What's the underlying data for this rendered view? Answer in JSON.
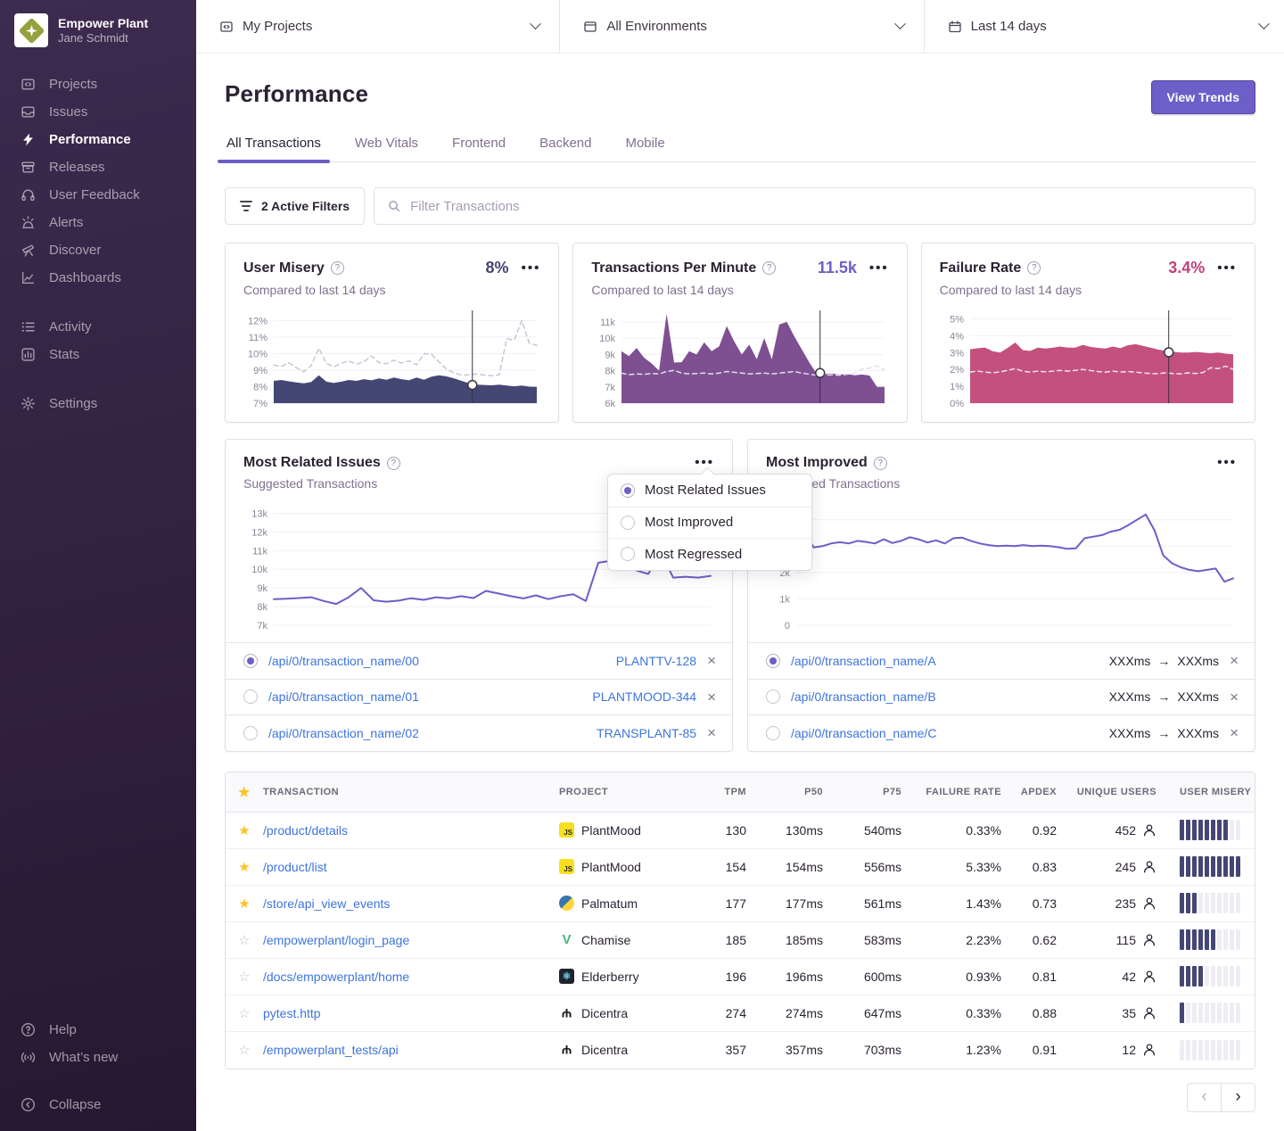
{
  "org": {
    "name": "Empower Plant",
    "user": "Jane Schmidt"
  },
  "colors": {
    "accent_purple": "#6C5FC7",
    "link_blue": "#3D74DB",
    "misery_navy": "#444674",
    "tpm_purple": "#7E4F91",
    "failure_pink": "#C4517D",
    "star_yellow": "#FFC227",
    "sidebar_top": "#3D2B50",
    "sidebar_bottom": "#271831"
  },
  "sidebar": {
    "primary": [
      {
        "label": "Projects",
        "icon": "projects-icon",
        "active": false
      },
      {
        "label": "Issues",
        "icon": "issues-icon",
        "active": false
      },
      {
        "label": "Performance",
        "icon": "performance-icon",
        "active": true
      },
      {
        "label": "Releases",
        "icon": "releases-icon",
        "active": false
      },
      {
        "label": "User Feedback",
        "icon": "user-feedback-icon",
        "active": false
      },
      {
        "label": "Alerts",
        "icon": "alerts-icon",
        "active": false
      },
      {
        "label": "Discover",
        "icon": "discover-icon",
        "active": false
      },
      {
        "label": "Dashboards",
        "icon": "dashboards-icon",
        "active": false
      }
    ],
    "secondary": [
      {
        "label": "Activity",
        "icon": "activity-icon",
        "active": false
      },
      {
        "label": "Stats",
        "icon": "stats-icon",
        "active": false
      }
    ],
    "tertiary": [
      {
        "label": "Settings",
        "icon": "settings-icon",
        "active": false
      }
    ],
    "footer": [
      {
        "label": "Help",
        "icon": "help-icon",
        "active": false
      },
      {
        "label": "What’s new",
        "icon": "broadcast-icon",
        "active": false
      }
    ],
    "collapse": {
      "label": "Collapse",
      "icon": "collapse-icon"
    }
  },
  "topbar": {
    "selectors": [
      {
        "label": "My Projects",
        "icon": "projects-icon"
      },
      {
        "label": "All Environments",
        "icon": "window-icon"
      },
      {
        "label": "Last 14 days",
        "icon": "calendar-icon"
      }
    ]
  },
  "header": {
    "title": "Performance",
    "view_trends_label": "View Trends",
    "tabs": [
      {
        "label": "All Transactions",
        "active": true
      },
      {
        "label": "Web Vitals",
        "active": false
      },
      {
        "label": "Frontend",
        "active": false
      },
      {
        "label": "Backend",
        "active": false
      },
      {
        "label": "Mobile",
        "active": false
      }
    ]
  },
  "filter_bar": {
    "active_filters_label": "2 Active Filters",
    "search_placeholder": "Filter Transactions"
  },
  "metric_cards": [
    {
      "id": "user_misery",
      "title": "User Misery",
      "value": "8%",
      "value_color": "#444674",
      "subtitle": "Compared to last 14 days"
    },
    {
      "id": "tpm",
      "title": "Transactions Per Minute",
      "value": "11.5k",
      "value_color": "#6C5FC7",
      "subtitle": "Compared to last 14 days"
    },
    {
      "id": "failure_rate",
      "title": "Failure Rate",
      "value": "3.4%",
      "value_color": "#C1417B",
      "subtitle": "Compared to last 14 days"
    }
  ],
  "trend_cards": [
    {
      "id": "most_related",
      "title": "Most Related Issues",
      "subtitle": "Suggested Transactions"
    },
    {
      "id": "most_improved",
      "title": "Most Improved",
      "subtitle": "Suggested Transactions"
    }
  ],
  "dropdown": {
    "options": [
      {
        "label": "Most Related Issues",
        "selected": true
      },
      {
        "label": "Most Improved",
        "selected": false
      },
      {
        "label": "Most Regressed",
        "selected": false
      }
    ]
  },
  "related_list": [
    {
      "selected": true,
      "name": "/api/0/transaction_name/00",
      "issue": "PLANTTV-128"
    },
    {
      "selected": false,
      "name": "/api/0/transaction_name/01",
      "issue": "PLANTMOOD-344"
    },
    {
      "selected": false,
      "name": "/api/0/transaction_name/02",
      "issue": "TRANSPLANT-85"
    }
  ],
  "improved_list": [
    {
      "selected": true,
      "name": "/api/0/transaction_name/A",
      "from": "XXXms",
      "to": "XXXms"
    },
    {
      "selected": false,
      "name": "/api/0/transaction_name/B",
      "from": "XXXms",
      "to": "XXXms"
    },
    {
      "selected": false,
      "name": "/api/0/transaction_name/C",
      "from": "XXXms",
      "to": "XXXms"
    }
  ],
  "table": {
    "columns": [
      "TRANSACTION",
      "PROJECT",
      "TPM",
      "P50",
      "P75",
      "FAILURE RATE",
      "APDEX",
      "UNIQUE USERS",
      "USER MISERY"
    ],
    "rows": [
      {
        "starred": true,
        "transaction": "/product/details",
        "platform": "javascript",
        "project": "PlantMood",
        "tpm": "130",
        "p50": "130ms",
        "p75": "540ms",
        "failure_rate": "0.33%",
        "apdex": "0.92",
        "unique_users": "452",
        "misery_filled": 8
      },
      {
        "starred": true,
        "transaction": "/product/list",
        "platform": "javascript",
        "project": "PlantMood",
        "tpm": "154",
        "p50": "154ms",
        "p75": "556ms",
        "failure_rate": "5.33%",
        "apdex": "0.83",
        "unique_users": "245",
        "misery_filled": 10
      },
      {
        "starred": true,
        "transaction": "/store/api_view_events",
        "platform": "python",
        "project": "Palmatum",
        "tpm": "177",
        "p50": "177ms",
        "p75": "561ms",
        "failure_rate": "1.43%",
        "apdex": "0.73",
        "unique_users": "235",
        "misery_filled": 3
      },
      {
        "starred": false,
        "transaction": "/empowerplant/login_page",
        "platform": "vue",
        "project": "Chamise",
        "tpm": "185",
        "p50": "185ms",
        "p75": "583ms",
        "failure_rate": "2.23%",
        "apdex": "0.62",
        "unique_users": "115",
        "misery_filled": 6
      },
      {
        "starred": false,
        "transaction": "/docs/empowerplant/home",
        "platform": "react",
        "project": "Elderberry",
        "tpm": "196",
        "p50": "196ms",
        "p75": "600ms",
        "failure_rate": "0.93%",
        "apdex": "0.81",
        "unique_users": "42",
        "misery_filled": 4
      },
      {
        "starred": false,
        "transaction": "pytest.http",
        "platform": "bird",
        "project": "Dicentra",
        "tpm": "274",
        "p50": "274ms",
        "p75": "647ms",
        "failure_rate": "0.33%",
        "apdex": "0.88",
        "unique_users": "35",
        "misery_filled": 1
      },
      {
        "starred": false,
        "transaction": "/empowerplant_tests/api",
        "platform": "bird",
        "project": "Dicentra",
        "tpm": "357",
        "p50": "357ms",
        "p75": "703ms",
        "failure_rate": "1.23%",
        "apdex": "0.91",
        "unique_users": "12",
        "misery_filled": 0
      }
    ]
  },
  "chart_data": [
    {
      "id": "user_misery",
      "type": "area",
      "title": "User Misery (%)",
      "ylim": [
        7,
        12.5
      ],
      "grid": true,
      "legend_position": "none",
      "yticks": [
        {
          "v": 12,
          "label": "12%"
        },
        {
          "v": 11,
          "label": "11%"
        },
        {
          "v": 10,
          "label": "10%"
        },
        {
          "v": 9,
          "label": "9%"
        },
        {
          "v": 8,
          "label": "8%"
        },
        {
          "v": 7,
          "label": "7%"
        }
      ],
      "series": [
        {
          "name": "previous period",
          "type": "dashed",
          "color": "#CBC3D6",
          "values": [
            9.3,
            9.22,
            9.45,
            9.15,
            8.9,
            9.28,
            10.32,
            9.4,
            9.2,
            9.42,
            9.55,
            9.35,
            9.5,
            9.85,
            9.45,
            9.38,
            9.6,
            9.42,
            9.55,
            9.32,
            10.0,
            9.95,
            9.5,
            9.05,
            8.82,
            8.7,
            8.72,
            8.76,
            8.7,
            8.66,
            8.72,
            10.9,
            10.8,
            12.0,
            10.62,
            10.5
          ]
        },
        {
          "name": "current period",
          "type": "area",
          "color": "#444674",
          "values": [
            8.35,
            8.4,
            8.32,
            8.25,
            8.2,
            8.28,
            8.68,
            8.3,
            8.22,
            8.3,
            8.4,
            8.35,
            8.45,
            8.38,
            8.5,
            8.42,
            8.55,
            8.45,
            8.38,
            8.55,
            8.42,
            8.6,
            8.68,
            8.62,
            8.5,
            8.35,
            8.2,
            8.12,
            8.1,
            8.08,
            8.12,
            8.06,
            8.02,
            8.06,
            8.0,
            7.98
          ]
        }
      ],
      "cursor": {
        "frac": 0.755,
        "value": 8.1
      }
    },
    {
      "id": "tpm",
      "type": "area",
      "title": "Transactions Per Minute (k)",
      "ylim": [
        6,
        11.6
      ],
      "grid": true,
      "legend_position": "none",
      "yticks": [
        {
          "v": 11,
          "label": "11k"
        },
        {
          "v": 10,
          "label": "10k"
        },
        {
          "v": 9,
          "label": "9k"
        },
        {
          "v": 8,
          "label": "8k"
        },
        {
          "v": 7,
          "label": "7k"
        },
        {
          "v": 6,
          "label": "6k"
        }
      ],
      "series": [
        {
          "name": "current period",
          "type": "area",
          "color": "#7E4F91",
          "values": [
            9.2,
            8.9,
            9.4,
            8.8,
            8.45,
            8.0,
            11.5,
            8.5,
            8.52,
            9.2,
            9.0,
            9.75,
            9.2,
            9.5,
            10.75,
            9.8,
            9.0,
            9.6,
            8.7,
            10.0,
            8.7,
            10.85,
            11.0,
            10.1,
            9.3,
            8.5,
            7.8,
            7.78,
            7.82,
            7.76,
            7.8,
            7.72,
            7.76,
            7.7,
            7.0,
            7.0
          ]
        },
        {
          "name": "previous period",
          "type": "dashed",
          "color": "#E4DCEE",
          "values": [
            7.85,
            7.75,
            7.8,
            7.78,
            7.82,
            7.8,
            7.95,
            8.02,
            7.85,
            7.8,
            7.82,
            7.85,
            7.8,
            7.85,
            7.95,
            7.9,
            7.85,
            7.8,
            7.82,
            7.85,
            7.8,
            7.85,
            7.9,
            7.95,
            7.85,
            7.78,
            7.72,
            7.7,
            7.75,
            7.72,
            7.78,
            7.85,
            8.1,
            8.15,
            8.3,
            8.05
          ]
        }
      ],
      "cursor": {
        "frac": 0.755,
        "value": 7.85
      }
    },
    {
      "id": "failure_rate",
      "type": "area",
      "title": "Failure Rate (%)",
      "ylim": [
        0,
        5.4
      ],
      "grid": true,
      "legend_position": "none",
      "yticks": [
        {
          "v": 5,
          "label": "5%"
        },
        {
          "v": 4,
          "label": "4%"
        },
        {
          "v": 3,
          "label": "3%"
        },
        {
          "v": 2,
          "label": "2%"
        },
        {
          "v": 1,
          "label": "1%"
        },
        {
          "v": 0,
          "label": "0%"
        }
      ],
      "series": [
        {
          "name": "current period",
          "type": "area",
          "color": "#C4517D",
          "values": [
            3.2,
            3.26,
            3.3,
            3.08,
            3.0,
            3.28,
            3.6,
            3.15,
            3.1,
            3.3,
            3.24,
            3.3,
            3.36,
            3.3,
            3.3,
            3.46,
            3.34,
            3.28,
            3.24,
            3.36,
            3.26,
            3.44,
            3.5,
            3.4,
            3.3,
            3.18,
            3.1,
            3.05,
            3.0,
            3.0,
            3.04,
            3.0,
            2.96,
            3.0,
            2.94,
            2.9
          ]
        },
        {
          "name": "previous period",
          "type": "dashed",
          "color": "#EDE5F0",
          "values": [
            1.85,
            1.9,
            1.84,
            1.8,
            1.86,
            1.95,
            2.05,
            1.9,
            1.84,
            1.9,
            1.86,
            1.9,
            1.95,
            1.9,
            1.95,
            2.0,
            1.94,
            1.88,
            1.84,
            1.9,
            1.84,
            1.88,
            1.84,
            1.8,
            1.76,
            1.75,
            1.8,
            1.76,
            1.74,
            1.8,
            1.76,
            1.82,
            2.1,
            2.05,
            2.2,
            2.0
          ]
        }
      ],
      "cursor": {
        "frac": 0.755,
        "value": 3.02
      }
    },
    {
      "id": "most_related",
      "type": "line",
      "title": "Most Related Issues – Suggested Transactions (k)",
      "ylim": [
        7,
        13.5
      ],
      "grid": true,
      "legend_position": "none",
      "yticks": [
        {
          "v": 13,
          "label": "13k"
        },
        {
          "v": 12,
          "label": "12k"
        },
        {
          "v": 11,
          "label": "11k"
        },
        {
          "v": 10,
          "label": "10k"
        },
        {
          "v": 9,
          "label": "9k"
        },
        {
          "v": 8,
          "label": "8k"
        },
        {
          "v": 7,
          "label": "7k"
        }
      ],
      "series": [
        {
          "name": "transactions",
          "type": "line",
          "color": "#6A5FC8",
          "values": [
            8.4,
            8.42,
            8.46,
            8.5,
            8.3,
            8.14,
            8.5,
            9.0,
            8.34,
            8.26,
            8.32,
            8.45,
            8.36,
            8.5,
            8.44,
            8.56,
            8.46,
            8.84,
            8.7,
            8.56,
            8.44,
            8.6,
            8.4,
            8.56,
            8.66,
            8.3,
            10.35,
            10.45,
            10.2,
            9.95,
            9.75,
            10.9,
            9.55,
            9.6,
            9.55,
            9.65
          ]
        }
      ]
    },
    {
      "id": "most_improved",
      "type": "line",
      "title": "Most Improved – Suggested Transactions (k)",
      "ylim": [
        0,
        4.6
      ],
      "grid": true,
      "legend_position": "none",
      "yticks": [
        {
          "v": 4,
          "label": "4k"
        },
        {
          "v": 3,
          "label": "3k"
        },
        {
          "v": 2,
          "label": "2k"
        },
        {
          "v": 1,
          "label": "1k"
        },
        {
          "v": 0,
          "label": "0"
        }
      ],
      "series": [
        {
          "name": "transactions",
          "type": "line",
          "color": "#6A5FC8",
          "values": [
            3.05,
            3.5,
            2.95,
            3.0,
            3.1,
            3.15,
            3.1,
            3.2,
            3.16,
            3.1,
            3.26,
            3.12,
            3.2,
            3.34,
            3.26,
            3.14,
            3.22,
            3.1,
            3.3,
            3.32,
            3.2,
            3.1,
            3.04,
            3.0,
            3.02,
            3.0,
            3.04,
            3.0,
            3.02,
            3.0,
            2.96,
            2.9,
            2.92,
            3.3,
            3.36,
            3.42,
            3.55,
            3.62,
            3.8,
            4.0,
            4.2,
            3.6,
            2.65,
            2.35,
            2.2,
            2.1,
            2.05,
            2.1,
            2.15,
            1.65,
            1.78
          ]
        }
      ]
    }
  ],
  "pagination": {
    "prev": "‹",
    "next": "›"
  }
}
